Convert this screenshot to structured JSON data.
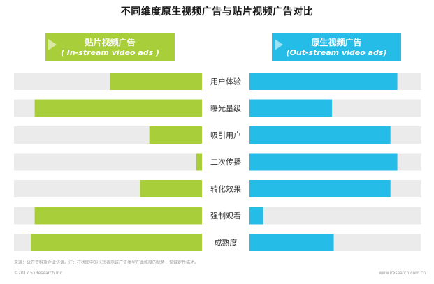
{
  "chart_data": {
    "type": "bar",
    "title": "不同维度原生视频广告与贴片视频广告对比",
    "categories": [
      "用户体验",
      "曝光量级",
      "吸引用户",
      "二次传播",
      "转化效果",
      "强制观看",
      "成熟度"
    ],
    "series": [
      {
        "name": "贴片视频广告 ( In-stream video ads )",
        "values": [
          0.49,
          0.89,
          0.28,
          0.03,
          0.33,
          0.89,
          0.91
        ],
        "color": "#a8cf3a",
        "direction": "left"
      },
      {
        "name": "原生视频广告 (Out-stream video ads)",
        "values": [
          0.86,
          0.48,
          0.82,
          0.86,
          0.82,
          0.08,
          0.49
        ],
        "color": "#25bde8",
        "direction": "right"
      }
    ],
    "xlim": [
      0,
      1
    ],
    "grid": false,
    "legend": "top",
    "track_color": "#ebebeb"
  },
  "legend": {
    "left_zh": "贴片视频广告",
    "left_en": "( In-stream video ads )",
    "right_zh": "原生视频广告",
    "right_en": "(Out-stream video ads)"
  },
  "footer": {
    "source": "来源：公开资料及企业访谈。注：柱状图中的长短表示该广告类型在此维度的优势，仅做定性描述。",
    "copyright": "©2017.5 iResearch Inc.",
    "site": "www.iresearch.com.cn"
  }
}
